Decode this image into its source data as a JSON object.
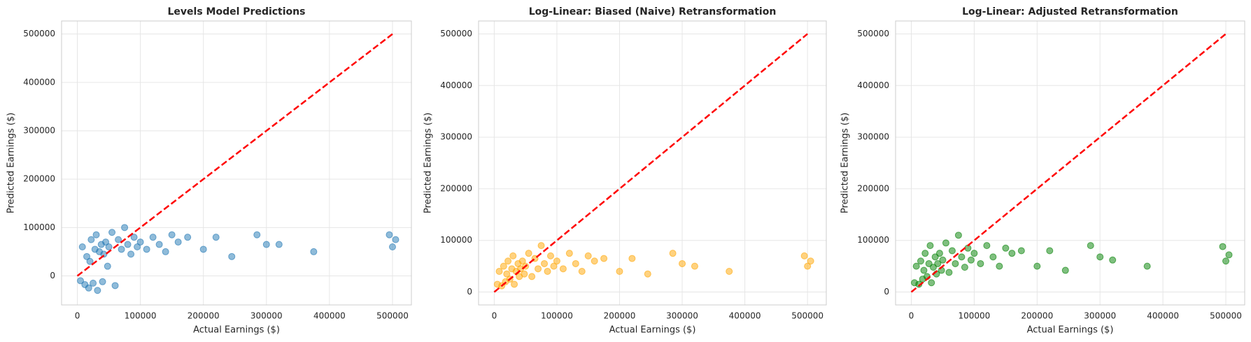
{
  "chart_data": [
    {
      "type": "scatter",
      "title": "Levels Model Predictions",
      "x_label": "Actual Earnings ($)",
      "y_label": "Predicted Earnings ($)",
      "xlim": [
        -25000,
        530000
      ],
      "ylim": [
        -60000,
        527000
      ],
      "xticks": [
        0,
        100000,
        200000,
        300000,
        400000,
        500000
      ],
      "yticks": [
        0,
        100000,
        200000,
        300000,
        400000,
        500000
      ],
      "grid": true,
      "points": {
        "color": "#1f77b4",
        "x": [
          5000,
          8000,
          12000,
          15000,
          18000,
          20000,
          22000,
          25000,
          28000,
          30000,
          32000,
          35000,
          38000,
          40000,
          42000,
          45000,
          48000,
          50000,
          55000,
          60000,
          65000,
          70000,
          75000,
          80000,
          85000,
          90000,
          95000,
          100000,
          110000,
          120000,
          130000,
          140000,
          150000,
          160000,
          175000,
          200000,
          220000,
          245000,
          285000,
          300000,
          320000,
          375000,
          495000,
          500000,
          505000
        ],
        "values": [
          -10000,
          60000,
          -18000,
          40000,
          -25000,
          30000,
          75000,
          -15000,
          55000,
          85000,
          -30000,
          50000,
          65000,
          -12000,
          45000,
          70000,
          20000,
          60000,
          90000,
          -20000,
          75000,
          55000,
          100000,
          65000,
          45000,
          80000,
          60000,
          70000,
          55000,
          80000,
          65000,
          50000,
          85000,
          70000,
          80000,
          55000,
          80000,
          40000,
          85000,
          65000,
          65000,
          50000,
          85000,
          60000,
          75000
        ]
      },
      "reference_line": {
        "color": "#ff0000",
        "x": [
          0,
          500000
        ],
        "values": [
          0,
          500000
        ]
      }
    },
    {
      "type": "scatter",
      "title": "Log-Linear: Biased (Naive) Retransformation",
      "x_label": "Actual Earnings ($)",
      "y_label": "Predicted Earnings ($)",
      "xlim": [
        -25000,
        530000
      ],
      "ylim": [
        -25000,
        525000
      ],
      "xticks": [
        0,
        100000,
        200000,
        300000,
        400000,
        500000
      ],
      "yticks": [
        0,
        100000,
        200000,
        300000,
        400000,
        500000
      ],
      "grid": true,
      "points": {
        "color": "#ffa500",
        "x": [
          5000,
          8000,
          12000,
          15000,
          18000,
          20000,
          22000,
          25000,
          28000,
          30000,
          32000,
          35000,
          38000,
          40000,
          42000,
          45000,
          48000,
          50000,
          55000,
          60000,
          65000,
          70000,
          75000,
          80000,
          85000,
          90000,
          95000,
          100000,
          110000,
          120000,
          130000,
          140000,
          150000,
          160000,
          175000,
          200000,
          220000,
          245000,
          285000,
          300000,
          320000,
          375000,
          495000,
          500000,
          505000
        ],
        "values": [
          15000,
          40000,
          12000,
          50000,
          20000,
          35000,
          60000,
          25000,
          45000,
          70000,
          15000,
          40000,
          55000,
          30000,
          45000,
          60000,
          35000,
          50000,
          75000,
          30000,
          65000,
          45000,
          90000,
          55000,
          40000,
          70000,
          50000,
          60000,
          45000,
          75000,
          55000,
          40000,
          70000,
          60000,
          65000,
          40000,
          65000,
          35000,
          75000,
          55000,
          50000,
          40000,
          70000,
          50000,
          60000
        ]
      },
      "reference_line": {
        "color": "#ff0000",
        "x": [
          0,
          500000
        ],
        "values": [
          0,
          500000
        ]
      }
    },
    {
      "type": "scatter",
      "title": "Log-Linear: Adjusted Retransformation",
      "x_label": "Actual Earnings ($)",
      "y_label": "Predicted Earnings ($)",
      "xlim": [
        -25000,
        530000
      ],
      "ylim": [
        -25000,
        525000
      ],
      "xticks": [
        0,
        100000,
        200000,
        300000,
        400000,
        500000
      ],
      "yticks": [
        0,
        100000,
        200000,
        300000,
        400000,
        500000
      ],
      "grid": true,
      "points": {
        "color": "#008000",
        "x": [
          5000,
          8000,
          12000,
          15000,
          18000,
          20000,
          22000,
          25000,
          28000,
          30000,
          32000,
          35000,
          38000,
          40000,
          42000,
          45000,
          48000,
          50000,
          55000,
          60000,
          65000,
          70000,
          75000,
          80000,
          85000,
          90000,
          95000,
          100000,
          110000,
          120000,
          130000,
          140000,
          150000,
          160000,
          175000,
          200000,
          220000,
          245000,
          285000,
          300000,
          320000,
          375000,
          495000,
          500000,
          505000
        ],
        "values": [
          18000,
          50000,
          15000,
          60000,
          25000,
          42000,
          75000,
          30000,
          55000,
          90000,
          18000,
          48000,
          68000,
          35000,
          55000,
          75000,
          42000,
          62000,
          95000,
          38000,
          80000,
          55000,
          110000,
          68000,
          48000,
          85000,
          62000,
          75000,
          55000,
          90000,
          68000,
          50000,
          85000,
          75000,
          80000,
          50000,
          80000,
          42000,
          90000,
          68000,
          62000,
          50000,
          88000,
          60000,
          72000
        ]
      },
      "reference_line": {
        "color": "#ff0000",
        "x": [
          0,
          500000
        ],
        "values": [
          0,
          500000
        ]
      }
    }
  ]
}
